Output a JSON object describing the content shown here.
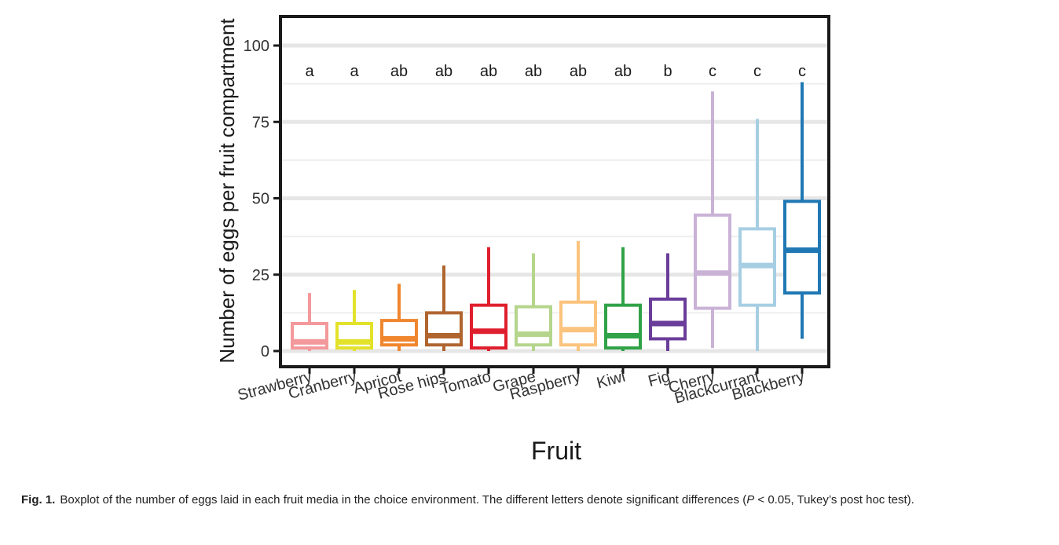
{
  "chart_data": {
    "type": "boxplot",
    "xlabel": "Fruit",
    "ylabel": "Number of eggs per fruit compartment",
    "ylim": [
      0,
      105
    ],
    "yticks": [
      0,
      25,
      50,
      75,
      100
    ],
    "grid": true,
    "categories": [
      "Strawberry",
      "Cranberry",
      "Apricot",
      "Rose hips",
      "Tomato",
      "Grape",
      "Raspberry",
      "Kiwi",
      "Fig",
      "Cherry",
      "Blackcurrant",
      "Blackberry"
    ],
    "groups": [
      {
        "name": "Strawberry",
        "color": "#f4999b",
        "letter": "a",
        "min": 0,
        "q1": 1,
        "median": 3,
        "q3": 9,
        "max": 19
      },
      {
        "name": "Cranberry",
        "color": "#e3e22a",
        "letter": "a",
        "min": 0,
        "q1": 1,
        "median": 3,
        "q3": 9,
        "max": 20
      },
      {
        "name": "Apricot",
        "color": "#f0862e",
        "letter": "ab",
        "min": 0,
        "q1": 2,
        "median": 4,
        "q3": 10,
        "max": 22
      },
      {
        "name": "Rose hips",
        "color": "#b0652f",
        "letter": "ab",
        "min": 0,
        "q1": 2,
        "median": 5,
        "q3": 12.5,
        "max": 28
      },
      {
        "name": "Tomato",
        "color": "#e01f2e",
        "letter": "ab",
        "min": 0,
        "q1": 1,
        "median": 6.5,
        "q3": 15,
        "max": 34
      },
      {
        "name": "Grape",
        "color": "#b5d58c",
        "letter": "ab",
        "min": 0,
        "q1": 2,
        "median": 5.5,
        "q3": 14.5,
        "max": 32
      },
      {
        "name": "Raspberry",
        "color": "#fbc37d",
        "letter": "ab",
        "min": 0,
        "q1": 2,
        "median": 7,
        "q3": 16,
        "max": 36
      },
      {
        "name": "Kiwi",
        "color": "#30a247",
        "letter": "ab",
        "min": 0,
        "q1": 1,
        "median": 5,
        "q3": 15,
        "max": 34
      },
      {
        "name": "Fig",
        "color": "#6a3d9a",
        "letter": "b",
        "min": 0,
        "q1": 4,
        "median": 9,
        "q3": 17,
        "max": 32
      },
      {
        "name": "Cherry",
        "color": "#cab2d6",
        "letter": "c",
        "min": 1,
        "q1": 14,
        "median": 25.5,
        "q3": 44.5,
        "max": 85
      },
      {
        "name": "Blackcurrant",
        "color": "#a6cee3",
        "letter": "c",
        "min": 0,
        "q1": 15,
        "median": 28,
        "q3": 40,
        "max": 76
      },
      {
        "name": "Blackberry",
        "color": "#1f78b4",
        "letter": "c",
        "min": 4,
        "q1": 19,
        "median": 33,
        "q3": 49,
        "max": 88
      }
    ]
  },
  "caption": {
    "label": "Fig. 1.",
    "text": "Boxplot of the number of eggs laid in each fruit media in the choice environment. The different letters denote significant differences (",
    "p_symbol": "P",
    "tail": " < 0.05, Tukey’s post hoc test)."
  }
}
